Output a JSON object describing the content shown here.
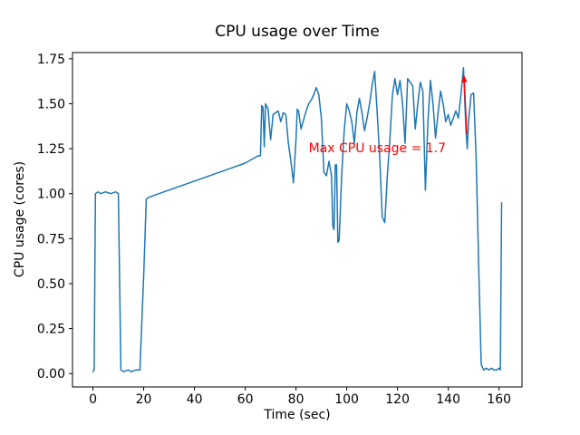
{
  "figure": {
    "title": "CPU usage over Time",
    "xlabel": "Time (sec)",
    "ylabel": "CPU usage (cores)"
  },
  "chart_data": {
    "type": "line",
    "title": "CPU usage over Time",
    "xlabel": "Time (sec)",
    "ylabel": "CPU usage (cores)",
    "xlim": [
      -8.05,
      169.05
    ],
    "ylim": [
      -0.0745,
      1.7845
    ],
    "xticks": [
      0,
      20,
      40,
      60,
      80,
      100,
      120,
      140,
      160
    ],
    "yticks": [
      0.0,
      0.25,
      0.5,
      0.75,
      1.0,
      1.25,
      1.5,
      1.75
    ],
    "grid": false,
    "legend": "none",
    "background": "#ffffff",
    "annotation": {
      "text": "Max CPU usage = 1.7",
      "color": "#ff0000",
      "point_xy": [
        146,
        1.7
      ],
      "text_xy": [
        85,
        1.23
      ],
      "arrow_from": [
        147.3,
        1.33
      ],
      "arrow_to": [
        146.2,
        1.66
      ]
    },
    "series": [
      {
        "name": "cpu_usage",
        "color": "#1f77b4",
        "max_value": 1.7,
        "points": [
          [
            0,
            0.01
          ],
          [
            0.5,
            0.02
          ],
          [
            1,
            1.0
          ],
          [
            2,
            1.01
          ],
          [
            3,
            1.0
          ],
          [
            5,
            1.01
          ],
          [
            7,
            1.0
          ],
          [
            9,
            1.01
          ],
          [
            10,
            1.0
          ],
          [
            11,
            0.02
          ],
          [
            12,
            0.01
          ],
          [
            14,
            0.02
          ],
          [
            15,
            0.01
          ],
          [
            17,
            0.02
          ],
          [
            18.5,
            0.02
          ],
          [
            20,
            0.55
          ],
          [
            21,
            0.97
          ],
          [
            22,
            0.98
          ],
          [
            30,
            1.02
          ],
          [
            40,
            1.07
          ],
          [
            50,
            1.12
          ],
          [
            60,
            1.17
          ],
          [
            65,
            1.21
          ],
          [
            66,
            1.21
          ],
          [
            66.5,
            1.49
          ],
          [
            67,
            1.48
          ],
          [
            67.5,
            1.26
          ],
          [
            68,
            1.5
          ],
          [
            69,
            1.47
          ],
          [
            70,
            1.3
          ],
          [
            71,
            1.44
          ],
          [
            73,
            1.46
          ],
          [
            74,
            1.4
          ],
          [
            75,
            1.45
          ],
          [
            76,
            1.44
          ],
          [
            77,
            1.28
          ],
          [
            78,
            1.18
          ],
          [
            79,
            1.06
          ],
          [
            80,
            1.3
          ],
          [
            80.5,
            1.47
          ],
          [
            81,
            1.46
          ],
          [
            82,
            1.36
          ],
          [
            83,
            1.41
          ],
          [
            84,
            1.46
          ],
          [
            85,
            1.5
          ],
          [
            86,
            1.52
          ],
          [
            87,
            1.55
          ],
          [
            88,
            1.59
          ],
          [
            89,
            1.55
          ],
          [
            90,
            1.42
          ],
          [
            91,
            1.12
          ],
          [
            92,
            1.1
          ],
          [
            93,
            1.18
          ],
          [
            94,
            1.1
          ],
          [
            94.5,
            0.82
          ],
          [
            95,
            0.8
          ],
          [
            95.5,
            1.16
          ],
          [
            96,
            1.16
          ],
          [
            96.5,
            0.73
          ],
          [
            97,
            0.74
          ],
          [
            98,
            1.1
          ],
          [
            99,
            1.35
          ],
          [
            100,
            1.5
          ],
          [
            101,
            1.46
          ],
          [
            102,
            1.4
          ],
          [
            103,
            1.28
          ],
          [
            104,
            1.45
          ],
          [
            105,
            1.53
          ],
          [
            106,
            1.45
          ],
          [
            107,
            1.35
          ],
          [
            108,
            1.42
          ],
          [
            109,
            1.5
          ],
          [
            110,
            1.6
          ],
          [
            111,
            1.68
          ],
          [
            112,
            1.45
          ],
          [
            113,
            1.2
          ],
          [
            114,
            0.87
          ],
          [
            115,
            0.84
          ],
          [
            116,
            1.1
          ],
          [
            117,
            1.3
          ],
          [
            118,
            1.55
          ],
          [
            119,
            1.64
          ],
          [
            120,
            1.55
          ],
          [
            121,
            1.63
          ],
          [
            122,
            1.5
          ],
          [
            123,
            1.28
          ],
          [
            124,
            1.64
          ],
          [
            125,
            1.62
          ],
          [
            126,
            1.6
          ],
          [
            127,
            1.36
          ],
          [
            128,
            1.5
          ],
          [
            129,
            1.62
          ],
          [
            130,
            1.57
          ],
          [
            131,
            1.02
          ],
          [
            132,
            1.4
          ],
          [
            133,
            1.63
          ],
          [
            134,
            1.5
          ],
          [
            135,
            1.31
          ],
          [
            136,
            1.45
          ],
          [
            137,
            1.57
          ],
          [
            138,
            1.5
          ],
          [
            139,
            1.4
          ],
          [
            140,
            1.44
          ],
          [
            141,
            1.38
          ],
          [
            142,
            1.42
          ],
          [
            143,
            1.46
          ],
          [
            144,
            1.42
          ],
          [
            145,
            1.55
          ],
          [
            146,
            1.7
          ],
          [
            147,
            1.35
          ],
          [
            147.5,
            1.25
          ],
          [
            148,
            1.4
          ],
          [
            149,
            1.55
          ],
          [
            150,
            1.56
          ],
          [
            151,
            1.2
          ],
          [
            152,
            0.6
          ],
          [
            153,
            0.05
          ],
          [
            154,
            0.02
          ],
          [
            155,
            0.03
          ],
          [
            156,
            0.02
          ],
          [
            157,
            0.03
          ],
          [
            158,
            0.02
          ],
          [
            159,
            0.02
          ],
          [
            160,
            0.03
          ],
          [
            160.5,
            0.02
          ],
          [
            161,
            0.95
          ]
        ]
      }
    ]
  }
}
